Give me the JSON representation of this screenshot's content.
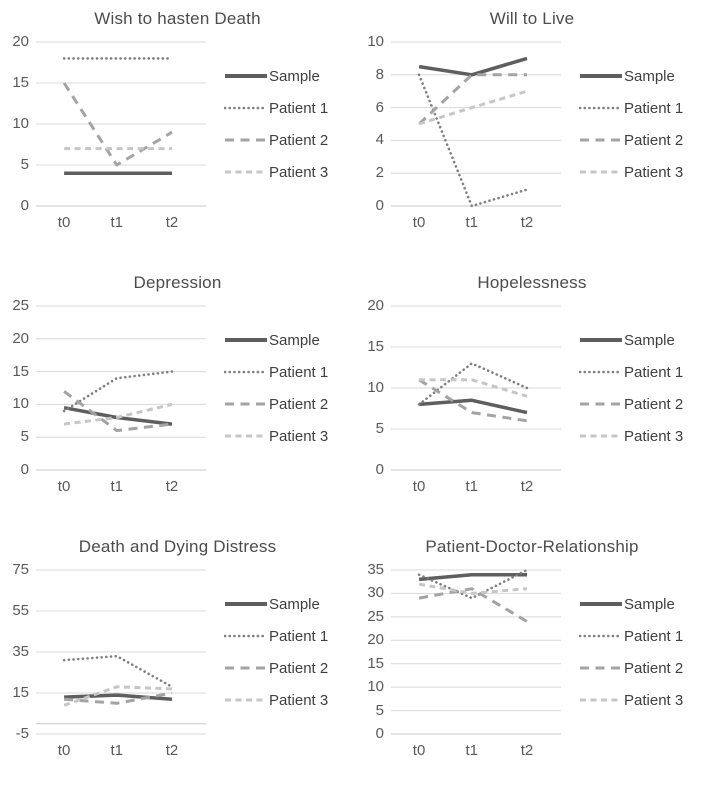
{
  "figure": {
    "kind": "small-multiples line chart figure",
    "rows": 3,
    "columns": 2,
    "panel_count": 6
  },
  "palette": {
    "sample": "#5e5e5e",
    "patient1": "#7f7f7f",
    "patient2": "#a3a3a3",
    "patient3": "#c6c6c6",
    "gridline": "#d9d9d9",
    "axis_line": "#c9c9c9",
    "tick_text": "#595959",
    "title_text": "#4c4c4c",
    "legend_text": "#3f3f3f"
  },
  "legend_labels": [
    "Sample",
    "Patient 1",
    "Patient 2",
    "Patient 3"
  ],
  "chart_data": [
    {
      "type": "line",
      "title": "Wish to hasten Death",
      "categories": [
        "t0",
        "t1",
        "t2"
      ],
      "yticks": [
        0,
        5,
        10,
        15,
        20
      ],
      "ylim": [
        0,
        20
      ],
      "grid": true,
      "legend_position": "right",
      "series": [
        {
          "name": "Sample",
          "values": [
            4,
            4,
            4
          ]
        },
        {
          "name": "Patient 1",
          "values": [
            18,
            18,
            18
          ]
        },
        {
          "name": "Patient 2",
          "values": [
            15,
            5,
            9
          ]
        },
        {
          "name": "Patient 3",
          "values": [
            7,
            7,
            7
          ]
        }
      ]
    },
    {
      "type": "line",
      "title": "Will to Live",
      "categories": [
        "t0",
        "t1",
        "t2"
      ],
      "yticks": [
        0,
        2,
        4,
        6,
        8,
        10
      ],
      "ylim": [
        0,
        10
      ],
      "grid": true,
      "legend_position": "right",
      "series": [
        {
          "name": "Sample",
          "values": [
            8.5,
            8,
            9
          ]
        },
        {
          "name": "Patient 1",
          "values": [
            8,
            0,
            1
          ]
        },
        {
          "name": "Patient 2",
          "values": [
            5,
            8,
            8
          ]
        },
        {
          "name": "Patient 3",
          "values": [
            5,
            6,
            7
          ]
        }
      ]
    },
    {
      "type": "line",
      "title": "Depression",
      "categories": [
        "t0",
        "t1",
        "t2"
      ],
      "yticks": [
        0,
        5,
        10,
        15,
        20,
        25
      ],
      "ylim": [
        0,
        25
      ],
      "grid": true,
      "legend_position": "right",
      "series": [
        {
          "name": "Sample",
          "values": [
            9.5,
            8,
            7
          ]
        },
        {
          "name": "Patient 1",
          "values": [
            9,
            14,
            15
          ]
        },
        {
          "name": "Patient 2",
          "values": [
            12,
            6,
            7
          ]
        },
        {
          "name": "Patient 3",
          "values": [
            7,
            8,
            10
          ]
        }
      ]
    },
    {
      "type": "line",
      "title": "Hopelessness",
      "categories": [
        "t0",
        "t1",
        "t2"
      ],
      "yticks": [
        0,
        5,
        10,
        15,
        20
      ],
      "ylim": [
        0,
        20
      ],
      "grid": true,
      "legend_position": "right",
      "series": [
        {
          "name": "Sample",
          "values": [
            8,
            8.5,
            7
          ]
        },
        {
          "name": "Patient 1",
          "values": [
            8,
            13,
            10
          ]
        },
        {
          "name": "Patient 2",
          "values": [
            11,
            7,
            6
          ]
        },
        {
          "name": "Patient 3",
          "values": [
            11,
            11,
            9
          ]
        }
      ]
    },
    {
      "type": "line",
      "title": "Death and Dying Distress",
      "categories": [
        "t0",
        "t1",
        "t2"
      ],
      "yticks": [
        -5,
        15,
        35,
        55,
        75
      ],
      "ylim": [
        -5,
        75
      ],
      "grid": true,
      "legend_position": "right",
      "series": [
        {
          "name": "Sample",
          "values": [
            13,
            14,
            12
          ]
        },
        {
          "name": "Patient 1",
          "values": [
            31,
            33,
            18
          ]
        },
        {
          "name": "Patient 2",
          "values": [
            12,
            10,
            15
          ]
        },
        {
          "name": "Patient 3",
          "values": [
            9,
            18,
            17
          ]
        }
      ]
    },
    {
      "type": "line",
      "title": "Patient-Doctor-Relationship",
      "categories": [
        "t0",
        "t1",
        "t2"
      ],
      "yticks": [
        0,
        5,
        10,
        15,
        20,
        25,
        30,
        35
      ],
      "ylim": [
        0,
        35
      ],
      "grid": true,
      "legend_position": "right",
      "series": [
        {
          "name": "Sample",
          "values": [
            33,
            34,
            34
          ]
        },
        {
          "name": "Patient 1",
          "values": [
            34,
            29,
            35
          ]
        },
        {
          "name": "Patient 2",
          "values": [
            29,
            31,
            24
          ]
        },
        {
          "name": "Patient 3",
          "values": [
            32,
            30,
            31
          ]
        }
      ]
    }
  ]
}
